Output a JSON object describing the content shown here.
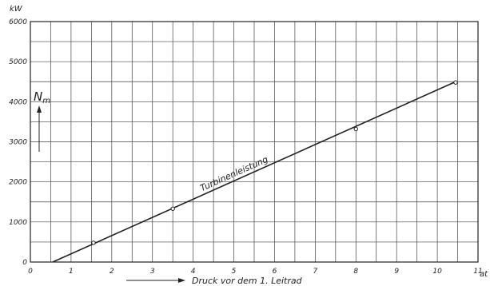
{
  "chart_data": {
    "type": "line",
    "y_unit": "kW",
    "x_unit": "at",
    "xlabel": "Druck vor dem 1. Leitrad",
    "ylabel_symbol": "N",
    "ylabel_subscript": "m",
    "series_label": "Turbinenleistung",
    "x_ticks": [
      0,
      1,
      2,
      3,
      4,
      5,
      6,
      7,
      8,
      9,
      10,
      11
    ],
    "y_ticks": [
      0,
      1000,
      2000,
      3000,
      4000,
      5000,
      6000
    ],
    "xlim": [
      0,
      11
    ],
    "ylim": [
      0,
      6000
    ],
    "grid": true,
    "series": [
      {
        "x": [
          0.55,
          10.45
        ],
        "y": [
          0,
          4500
        ]
      }
    ],
    "markers": {
      "x": [
        1.55,
        3.5,
        8.0,
        10.45
      ],
      "y": [
        480,
        1330,
        3320,
        4480
      ]
    }
  }
}
